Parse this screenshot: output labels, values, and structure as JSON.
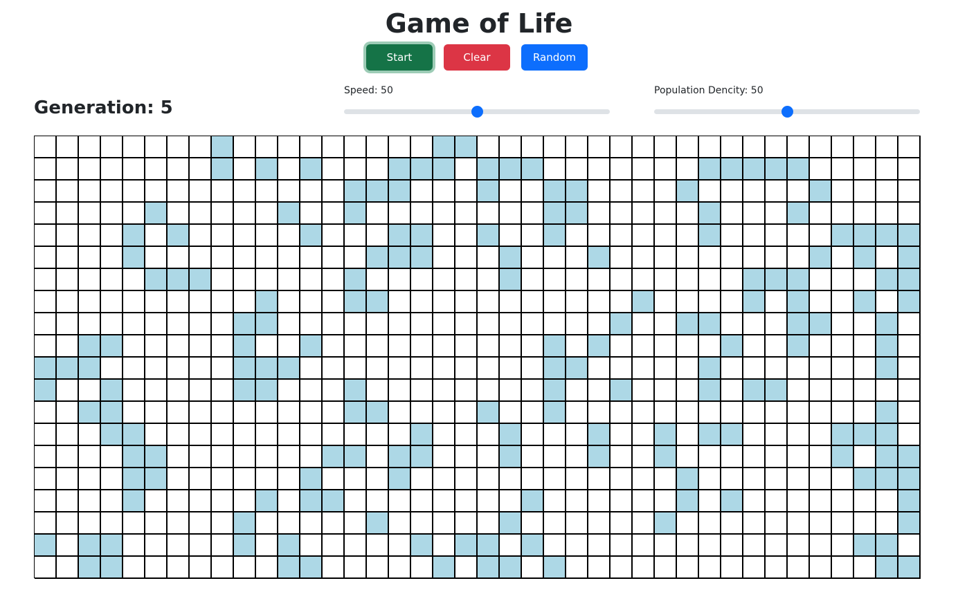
{
  "header": {
    "title": "Game of Life"
  },
  "controls": {
    "start_label": "Start",
    "clear_label": "Clear",
    "random_label": "Random"
  },
  "status": {
    "generation_text": "Generation: 5"
  },
  "sliders": {
    "speed": {
      "label": "Speed: 50",
      "value": 50,
      "max": 100
    },
    "density": {
      "label": "Population Dencity: 50",
      "value": 50,
      "max": 100
    }
  },
  "colors": {
    "alive": "#add8e6",
    "dead": "#ffffff",
    "start": "#157347",
    "clear": "#dc3545",
    "random": "#0d6efd"
  },
  "grid": {
    "rows": 20,
    "cols": 40,
    "cells": [
      "........#.........##....................",
      "........#.#.#...###.###.......#####.....",
      "..............###...#..##....#.....#....",
      ".....#.....#..#........##.....#...#.....",
      "....#.#.....#...##..#..#......#.....####",
      "....#..........###...#...#.........#.#.#",
      ".....###......#......#..........###...##",
      "..........#...##...........#....#.#..#.##",
      ".........##...............#..##...##..#.#",
      "..##.....#..#..........#.#.....#..#...#.#.",
      "###......###...........##.....#.......#..",
      "#..#.....##...#........#..#...#.##.......",
      "..##..........##....#..#..............#..",
      "...##............#...#...#..#.##....###..",
      "....##.......##.##...#...#..#.......#.##.",
      "....##......#...#............#.......###.#",
      "....#.....#.##........#......#.#.......##.##",
      ".........#.....#.....#......#..........#.",
      "#.##.....#.#.....#.##.#..............##.#.",
      "..##.......##.....#.##.#..............###."
    ]
  }
}
